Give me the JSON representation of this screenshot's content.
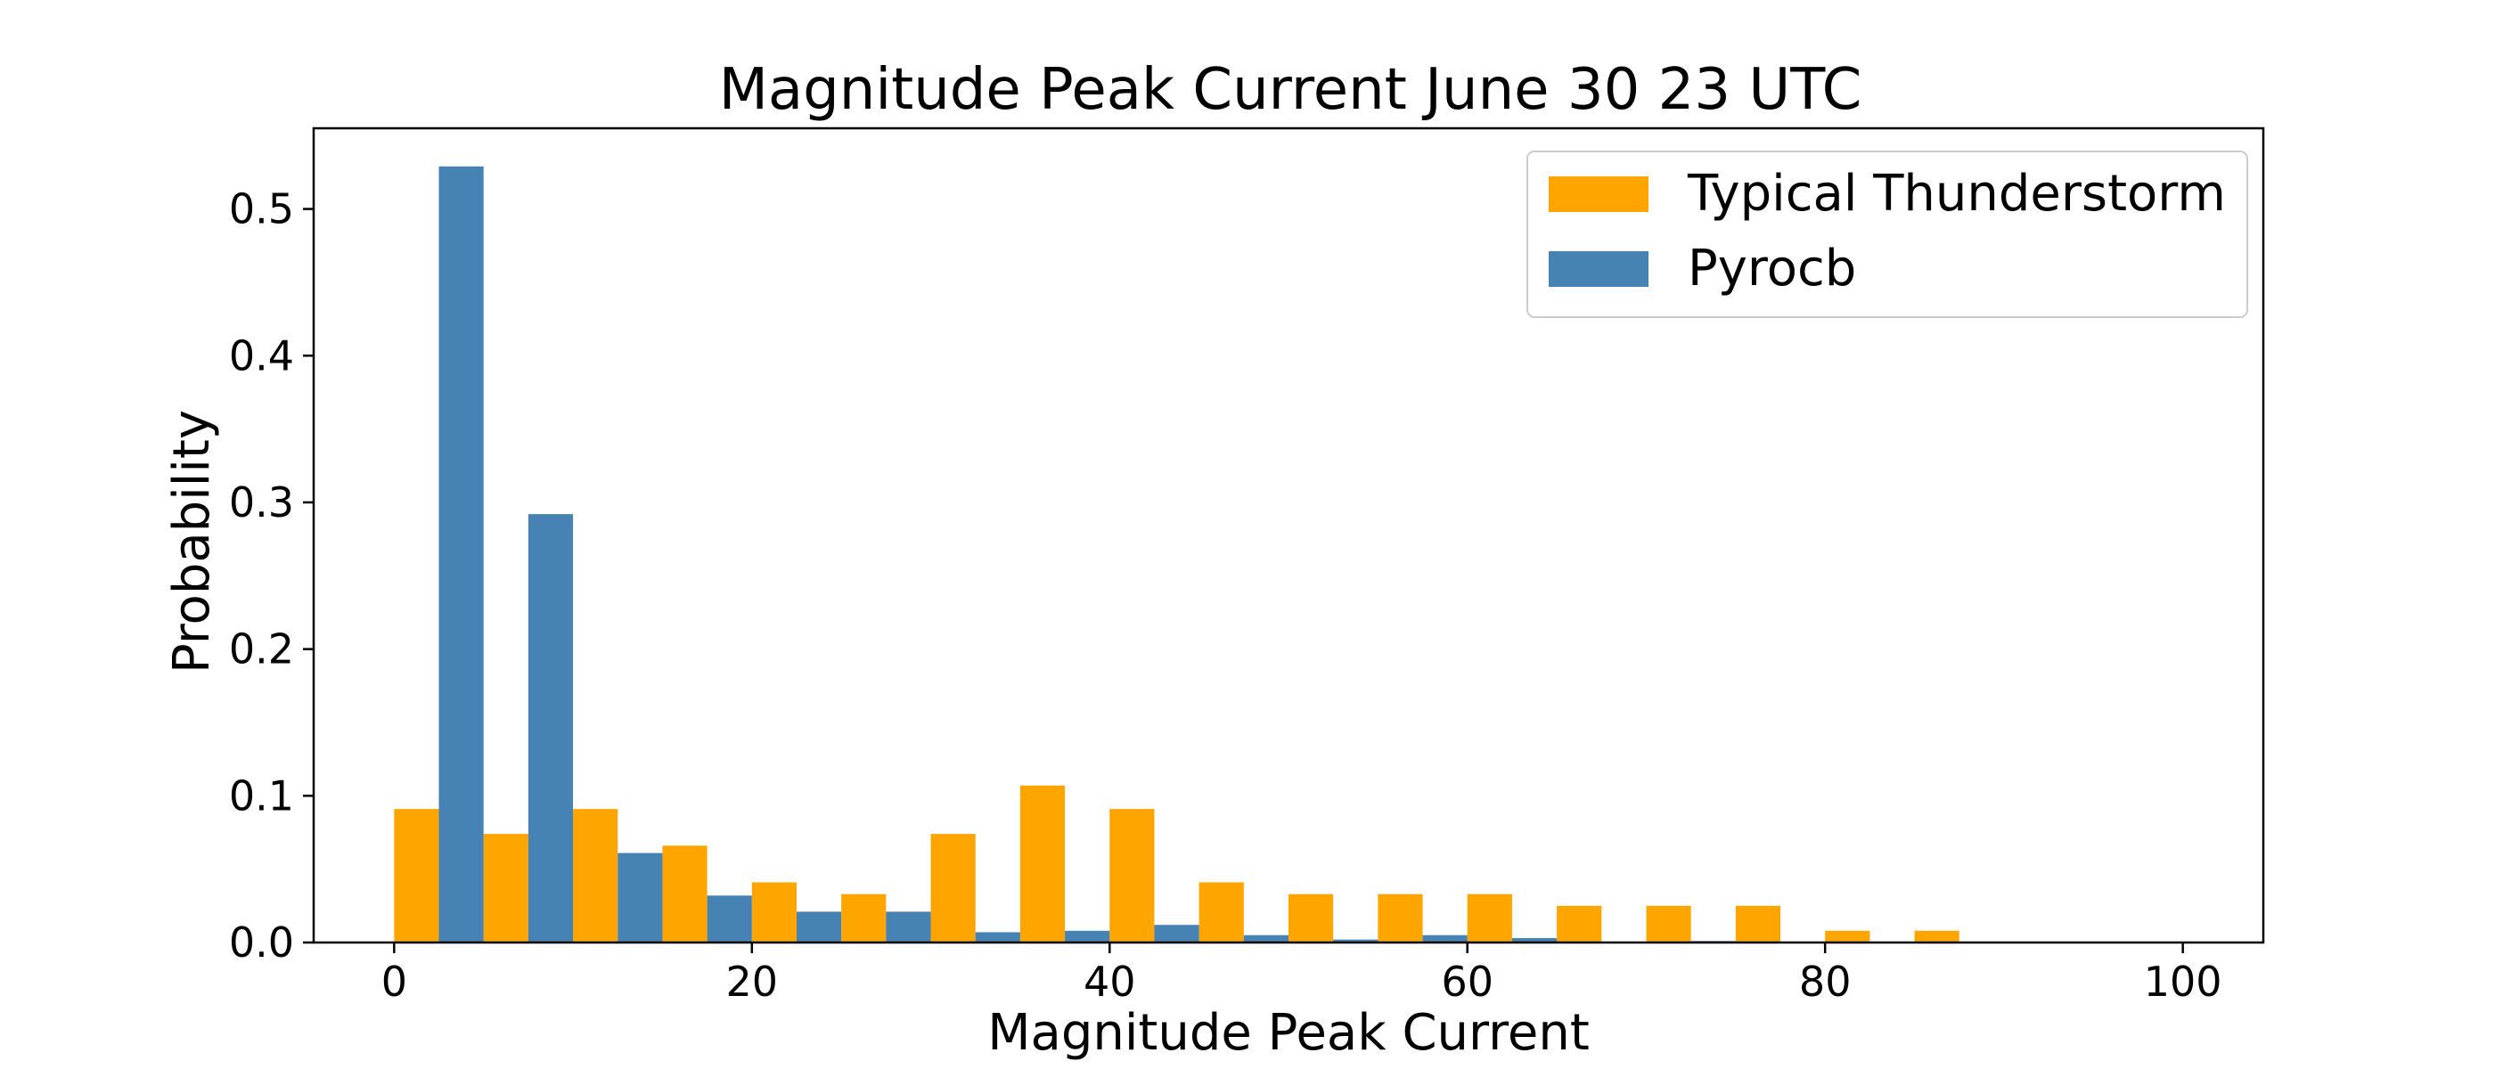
{
  "chart_data": {
    "type": "bar",
    "title": "Magnitude Peak Current June 30 23 UTC",
    "xlabel": "Magnitude Peak Current",
    "ylabel": "Probability",
    "xlim": [
      -4.5,
      104.5
    ],
    "ylim": [
      0,
      0.555
    ],
    "xticks": [
      0,
      20,
      40,
      60,
      80,
      100
    ],
    "xtick_labels": [
      "0",
      "20",
      "40",
      "60",
      "80",
      "100"
    ],
    "yticks": [
      0.0,
      0.1,
      0.2,
      0.3,
      0.4,
      0.5
    ],
    "ytick_labels": [
      "0.0",
      "0.1",
      "0.2",
      "0.3",
      "0.4",
      "0.5"
    ],
    "grid": false,
    "legend_position": "top-right",
    "bin_width": 5,
    "bins": [
      0,
      5,
      10,
      15,
      20,
      25,
      30,
      35,
      40,
      45,
      50,
      55,
      60,
      65,
      70,
      75,
      80,
      85,
      90,
      95
    ],
    "series": [
      {
        "name": "Typical Thunderstorm",
        "color": "#ffa500",
        "values": [
          0.091,
          0.074,
          0.091,
          0.066,
          0.041,
          0.033,
          0.074,
          0.107,
          0.091,
          0.041,
          0.033,
          0.033,
          0.033,
          0.025,
          0.025,
          0.025,
          0.008,
          0.008,
          0.0,
          0.0
        ]
      },
      {
        "name": "Pyrocb",
        "color": "#4682b4",
        "values": [
          0.529,
          0.292,
          0.061,
          0.032,
          0.021,
          0.021,
          0.007,
          0.008,
          0.012,
          0.005,
          0.002,
          0.005,
          0.003,
          0.0,
          0.001,
          0.0,
          0.0,
          0.0,
          0.0,
          0.0
        ]
      }
    ]
  }
}
